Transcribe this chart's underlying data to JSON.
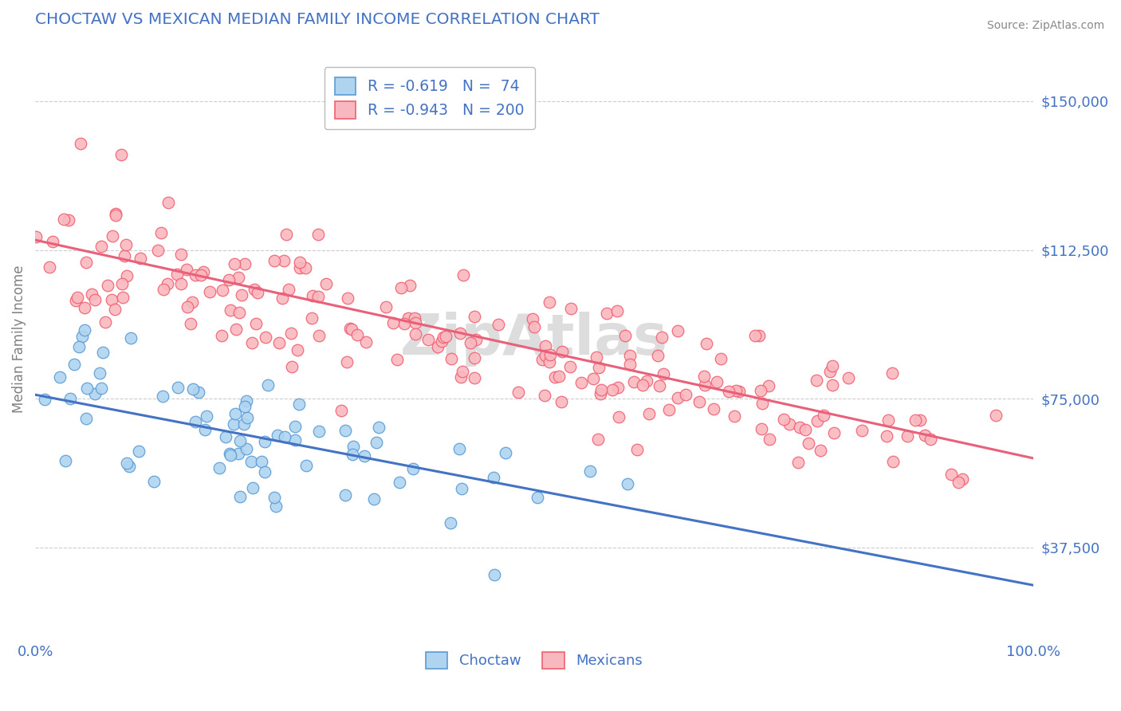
{
  "title": "CHOCTAW VS MEXICAN MEDIAN FAMILY INCOME CORRELATION CHART",
  "source_text": "Source: ZipAtlas.com",
  "ylabel": "Median Family Income",
  "x_min": 0.0,
  "x_max": 1.0,
  "y_min": 15000,
  "y_max": 165000,
  "ytick_values": [
    37500,
    75000,
    112500,
    150000
  ],
  "ytick_labels": [
    "$37,500",
    "$75,000",
    "$112,500",
    "$150,000"
  ],
  "xtick_values": [
    0.0,
    1.0
  ],
  "xtick_labels": [
    "0.0%",
    "100.0%"
  ],
  "choctaw_R": "-0.619",
  "choctaw_N": "74",
  "mexican_R": "-0.943",
  "mexican_N": "200",
  "choctaw_color": "#AED4F0",
  "mexican_color": "#F9B8BF",
  "choctaw_edge_color": "#5B9BD5",
  "mexican_edge_color": "#F06070",
  "choctaw_line_color": "#4472C4",
  "mexican_line_color": "#E8607A",
  "legend_label_choctaw": "Choctaw",
  "legend_label_mexican": "Mexicans",
  "background_color": "#FFFFFF",
  "grid_color": "#CCCCCC",
  "title_color": "#4472C4",
  "axis_label_color": "#808080",
  "tick_label_color": "#4472C4",
  "source_color": "#888888",
  "watermark_text": "ZipAtlas",
  "watermark_color": "#DDDDDD",
  "choctaw_line_intercept": 76000,
  "choctaw_line_slope": -48000,
  "mexican_line_intercept": 115000,
  "mexican_line_slope": -55000
}
